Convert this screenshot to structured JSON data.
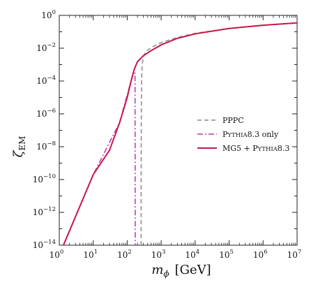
{
  "chart_data": {
    "type": "line",
    "xscale": "log",
    "yscale": "log",
    "xlim": [
      1,
      10000000
    ],
    "ylim": [
      1e-14,
      1
    ],
    "xlabel": {
      "main": "m",
      "sub": "ϕ",
      "unit": "[GeV]"
    },
    "ylabel": {
      "main": "ζ",
      "sub": "EM"
    },
    "x_ticks": [
      {
        "base": "10",
        "exp": "0"
      },
      {
        "base": "10",
        "exp": "1"
      },
      {
        "base": "10",
        "exp": "2"
      },
      {
        "base": "10",
        "exp": "3"
      },
      {
        "base": "10",
        "exp": "4"
      },
      {
        "base": "10",
        "exp": "5"
      },
      {
        "base": "10",
        "exp": "6"
      },
      {
        "base": "10",
        "exp": "7"
      }
    ],
    "y_ticks": [
      {
        "base": "10",
        "exp": "0"
      },
      {
        "base": "10",
        "exp": "−2"
      },
      {
        "base": "10",
        "exp": "−4"
      },
      {
        "base": "10",
        "exp": "−6"
      },
      {
        "base": "10",
        "exp": "−8"
      },
      {
        "base": "10",
        "exp": "−10"
      },
      {
        "base": "10",
        "exp": "−12"
      },
      {
        "base": "10",
        "exp": "−14"
      }
    ],
    "legend_position": "center-right",
    "series": [
      {
        "name": "PPPC",
        "color": "#999999",
        "dash": "dashed",
        "x": [
          257,
          258,
          260,
          265,
          275,
          300,
          350,
          500,
          1000,
          3000,
          10000,
          100000,
          1000000,
          10000000
        ],
        "y": [
          1e-14,
          1e-09,
          1e-06,
          0.0001,
          0.001,
          0.003,
          0.006,
          0.011,
          0.022,
          0.045,
          0.08,
          0.16,
          0.25,
          0.35
        ]
      },
      {
        "name": "Pythia8.3 only",
        "name_parts": [
          {
            "text": "P",
            "caps": false
          },
          {
            "text": "YTHIA",
            "caps": true
          },
          {
            "text": "8.3 only",
            "caps": false
          }
        ],
        "color": "#c050c8",
        "dash": "dashdot",
        "x": [
          1,
          10,
          60,
          150,
          170,
          171,
          171.5,
          172
        ],
        "y": [
          2.5e-15,
          2e-10,
          3e-07,
          0.0003,
          0.0003,
          1e-08,
          1e-11,
          1e-14
        ]
      },
      {
        "name": "MG5 + Pythia8.3",
        "name_parts": [
          {
            "text": "MG5 + P",
            "caps": false
          },
          {
            "text": "YTHIA",
            "caps": true
          },
          {
            "text": "8.3",
            "caps": false
          }
        ],
        "color": "#c8174a",
        "dash": "solid",
        "x": [
          1,
          10,
          30,
          60,
          100,
          130,
          160,
          200,
          300,
          500,
          1000,
          3000,
          10000,
          100000,
          1000000,
          10000000
        ],
        "y": [
          2.5e-15,
          2e-10,
          6e-09,
          3e-07,
          1e-05,
          0.0001,
          0.0005,
          0.0015,
          0.0035,
          0.007,
          0.016,
          0.04,
          0.075,
          0.16,
          0.25,
          0.35
        ]
      }
    ]
  }
}
